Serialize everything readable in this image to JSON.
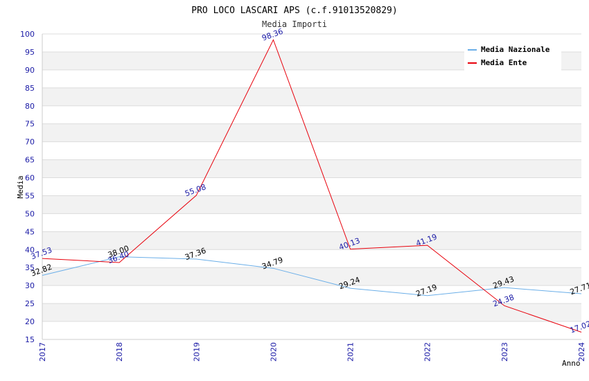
{
  "chart_data": {
    "type": "line",
    "title": "PRO LOCO LASCARI APS (c.f.91013520829)",
    "subtitle": "Media Importi",
    "xlabel": "Anno",
    "ylabel": "Media",
    "categories": [
      "2017",
      "2018",
      "2019",
      "2020",
      "2021",
      "2022",
      "2023",
      "2024"
    ],
    "ylim": [
      15,
      100
    ],
    "yticks": [
      15,
      20,
      25,
      30,
      35,
      40,
      45,
      50,
      55,
      60,
      65,
      70,
      75,
      80,
      85,
      90,
      95,
      100
    ],
    "grid": true,
    "legend_position": "top-right",
    "series": [
      {
        "name": "Media Nazionale",
        "color": "#6aaee8",
        "label_color": "#000000",
        "values": [
          32.82,
          38.0,
          37.36,
          34.79,
          29.24,
          27.19,
          29.43,
          27.71
        ],
        "labels": [
          "32.82",
          "38.00",
          "37.36",
          "34.79",
          "29.24",
          "27.19",
          "29.43",
          "27.71"
        ]
      },
      {
        "name": "Media Ente",
        "color": "#e8000b",
        "label_color": "#1a1aa6",
        "values": [
          37.53,
          36.4,
          55.08,
          98.36,
          40.13,
          41.19,
          24.38,
          17.02
        ],
        "labels": [
          "37.53",
          "36.40",
          "55.08",
          "98.36",
          "40.13",
          "41.19",
          "24.38",
          "17.02"
        ]
      }
    ]
  },
  "colors": {
    "axis_tick_text": "#1a1aa6",
    "band_fill": "#f2f2f2",
    "grid_line": "#dcdcdc",
    "title_text": "#000000",
    "subtitle_text": "#333333"
  }
}
